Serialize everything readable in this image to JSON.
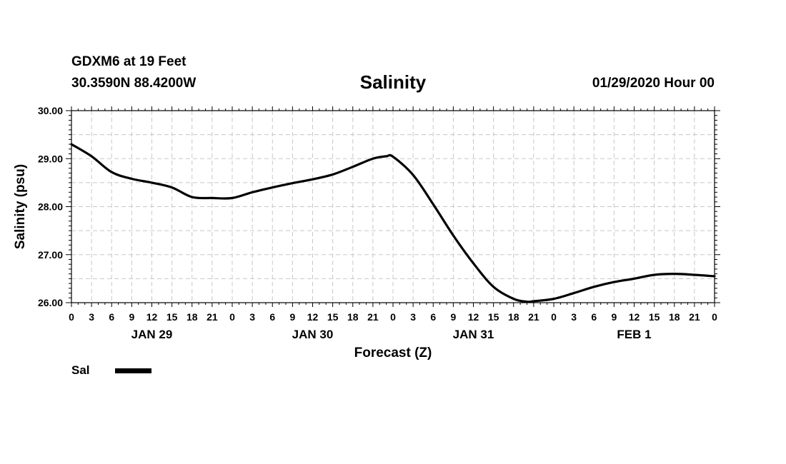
{
  "header": {
    "station": "GDXM6 at 19 Feet",
    "coords": "30.3590N 88.4200W",
    "title": "Salinity",
    "datetime": "01/29/2020 Hour 00"
  },
  "legend": {
    "label": "Sal"
  },
  "chart_data": {
    "type": "line",
    "title": "Salinity",
    "xlabel": "Forecast (Z)",
    "ylabel": "Salinity (psu)",
    "ylim": [
      26.0,
      30.0
    ],
    "yticks": [
      "26.00",
      "27.00",
      "28.00",
      "29.00",
      "30.00"
    ],
    "xlim": [
      0,
      96
    ],
    "xtick_labels": [
      "0",
      "3",
      "6",
      "9",
      "12",
      "15",
      "18",
      "21",
      "0",
      "3",
      "6",
      "9",
      "12",
      "15",
      "18",
      "21",
      "0",
      "3",
      "6",
      "9",
      "12",
      "15",
      "18",
      "21",
      "0",
      "3",
      "6",
      "9",
      "12",
      "15",
      "18",
      "21",
      "0"
    ],
    "day_labels": [
      {
        "label": "JAN 29",
        "hour": 12
      },
      {
        "label": "JAN 30",
        "hour": 36
      },
      {
        "label": "JAN 31",
        "hour": 60
      },
      {
        "label": "FEB 1",
        "hour": 84
      }
    ],
    "grid": true,
    "legend_position": "bottom-left",
    "series": [
      {
        "name": "Sal",
        "x": [
          0,
          3,
          6,
          9,
          12,
          15,
          18,
          21,
          24,
          27,
          30,
          33,
          36,
          39,
          42,
          45,
          47,
          48,
          51,
          54,
          57,
          60,
          63,
          66,
          68,
          69,
          72,
          75,
          78,
          81,
          84,
          87,
          90,
          93,
          96
        ],
        "y": [
          29.3,
          29.05,
          28.72,
          28.58,
          28.5,
          28.4,
          28.2,
          28.18,
          28.18,
          28.3,
          28.4,
          28.49,
          28.57,
          28.67,
          28.83,
          29.0,
          29.05,
          29.04,
          28.66,
          28.05,
          27.4,
          26.82,
          26.33,
          26.08,
          26.02,
          26.03,
          26.08,
          26.2,
          26.33,
          26.43,
          26.5,
          26.58,
          26.6,
          26.58,
          26.55
        ]
      }
    ]
  }
}
